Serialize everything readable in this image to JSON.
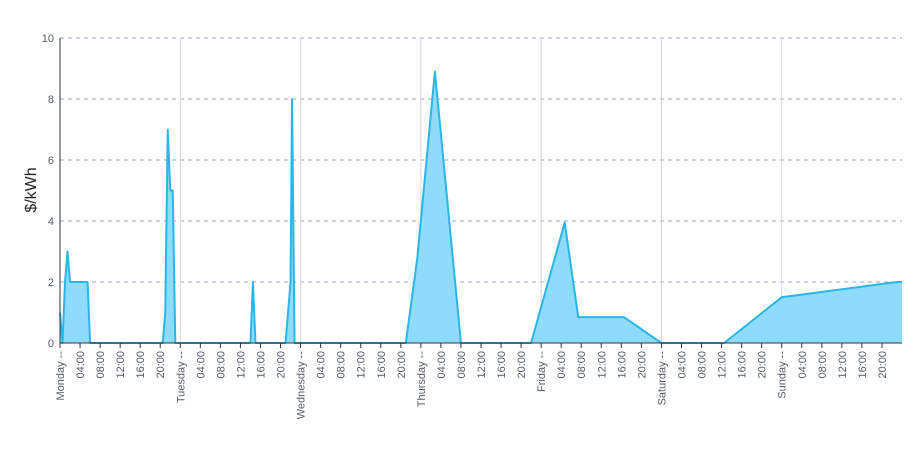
{
  "chart_data": {
    "type": "area",
    "title": "",
    "xlabel": "",
    "ylabel": "$/kWh",
    "ylim": [
      0,
      10
    ],
    "yticks": [
      0,
      2,
      4,
      6,
      8,
      10
    ],
    "grid": true,
    "fill_color": "#8fdbfb",
    "line_color": "#2bb6e8",
    "x_unit": "hours from Monday 00:00",
    "xlim": [
      0,
      168
    ],
    "day_labels": [
      "Monday --",
      "Tuesday --",
      "Wednesday --",
      "Thursday --",
      "Friday --",
      "Saturday --",
      "Sunday --"
    ],
    "hour_labels": [
      "04:00",
      "08:00",
      "12:00",
      "16:00",
      "20:00"
    ],
    "series": [
      {
        "x": [
          0,
          0.5,
          1,
          1.5,
          2,
          4,
          5.5,
          6,
          20.5,
          21,
          21.5,
          22,
          22.5,
          23,
          38,
          38.5,
          39,
          45,
          46,
          46.3,
          46.8,
          48,
          69,
          71.3,
          74.8,
          80,
          94,
          100.7,
          103.4,
          112.5,
          120,
          132.5,
          144,
          167,
          168
        ],
        "y": [
          1,
          0,
          2,
          3,
          2,
          2,
          2,
          0,
          0,
          1,
          7,
          5,
          5,
          0,
          0,
          2,
          0,
          0,
          2,
          8,
          0,
          0,
          0,
          2.8,
          8.9,
          0,
          0,
          3.95,
          0.85,
          0.85,
          0,
          0,
          1.5,
          2,
          2
        ]
      }
    ]
  }
}
